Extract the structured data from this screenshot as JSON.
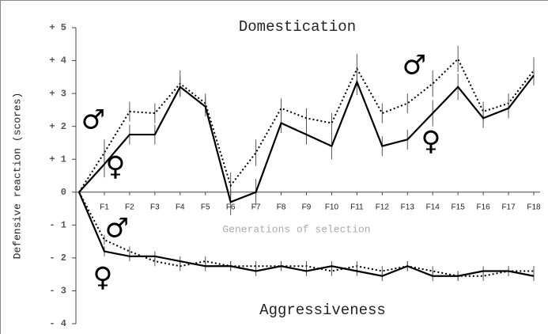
{
  "chart_data": {
    "type": "line",
    "title": "Domestication",
    "annotation": "Aggressiveness",
    "x_label": "Generations of selection",
    "y_label": "Defensive reaction (scores)",
    "categories": [
      null,
      "F1",
      "F2",
      "F3",
      "F4",
      "F5",
      "F6",
      "F7",
      "F8",
      "F9",
      "F10",
      "F11",
      "F12",
      "F13",
      "F14",
      "F15",
      "F16",
      "F17",
      "F18"
    ],
    "ylim": [
      -4,
      5
    ],
    "yticks": [
      {
        "value": 5,
        "label": "+ 5"
      },
      {
        "value": 4,
        "label": "+ 4"
      },
      {
        "value": 3,
        "label": "+ 3"
      },
      {
        "value": 2,
        "label": "+ 2"
      },
      {
        "value": 1,
        "label": "+ 1"
      },
      0,
      {
        "value": -1,
        "label": "- 1"
      },
      {
        "value": -2,
        "label": "- 2"
      },
      {
        "value": -3,
        "label": "- 3"
      },
      {
        "value": -4,
        "label": "- 4"
      }
    ],
    "series": [
      {
        "name": "♂",
        "color": "#000000",
        "style": "dotted",
        "values": [
          0,
          1.2,
          2.45,
          2.4,
          3.3,
          2.7,
          0.2,
          1.2,
          2.55,
          2.25,
          2.1,
          3.75,
          2.4,
          2.7,
          3.3,
          4.05,
          2.45,
          2.7,
          3.7
        ],
        "errors": [
          null,
          0.4,
          0.3,
          0.3,
          0.4,
          0.3,
          0.4,
          0.4,
          0.3,
          0.3,
          0.3,
          0.45,
          0.3,
          0.3,
          0.4,
          0.4,
          0.3,
          0.3,
          0.4
        ]
      },
      {
        "name": "♀",
        "color": "#000000",
        "style": "solid",
        "values": [
          0,
          0.85,
          1.75,
          1.75,
          3.2,
          2.6,
          -0.3,
          0,
          2.1,
          1.75,
          1.4,
          3.35,
          1.4,
          1.6,
          2.4,
          3.2,
          2.25,
          2.55,
          3.55
        ],
        "errors": [
          null,
          0.4,
          0.3,
          0.3,
          0.3,
          0.3,
          0.4,
          0.4,
          0.3,
          0.3,
          0.4,
          0.4,
          0.3,
          0.3,
          0.4,
          0.4,
          0.3,
          0.3,
          0.3
        ]
      },
      {
        "name": "♂",
        "color": "#000000",
        "style": "dotted",
        "values": [
          0,
          -1.45,
          -1.8,
          -2.1,
          -2.25,
          -2.1,
          -2.25,
          -2.25,
          -2.25,
          -2.25,
          -2.4,
          -2.25,
          -2.4,
          -2.25,
          -2.4,
          -2.55,
          -2.55,
          -2.4,
          -2.4
        ],
        "errors": [
          null,
          0.15,
          0.15,
          0.15,
          0.15,
          0.15,
          0.15,
          0.15,
          0.15,
          0.15,
          0.15,
          0.15,
          0.15,
          0.15,
          0.15,
          0.15,
          0.15,
          0.15,
          0.15
        ]
      },
      {
        "name": "♀",
        "color": "#000000",
        "style": "solid",
        "values": [
          0,
          -1.8,
          -1.95,
          -1.95,
          -2.1,
          -2.25,
          -2.25,
          -2.4,
          -2.25,
          -2.4,
          -2.25,
          -2.4,
          -2.55,
          -2.25,
          -2.55,
          -2.55,
          -2.4,
          -2.4,
          -2.55
        ],
        "errors": [
          null,
          0.15,
          0.15,
          0.15,
          0.15,
          0.15,
          0.15,
          0.15,
          0.15,
          0.15,
          0.15,
          0.15,
          0.15,
          0.15,
          0.15,
          0.15,
          0.15,
          0.15,
          0.15
        ]
      }
    ]
  }
}
